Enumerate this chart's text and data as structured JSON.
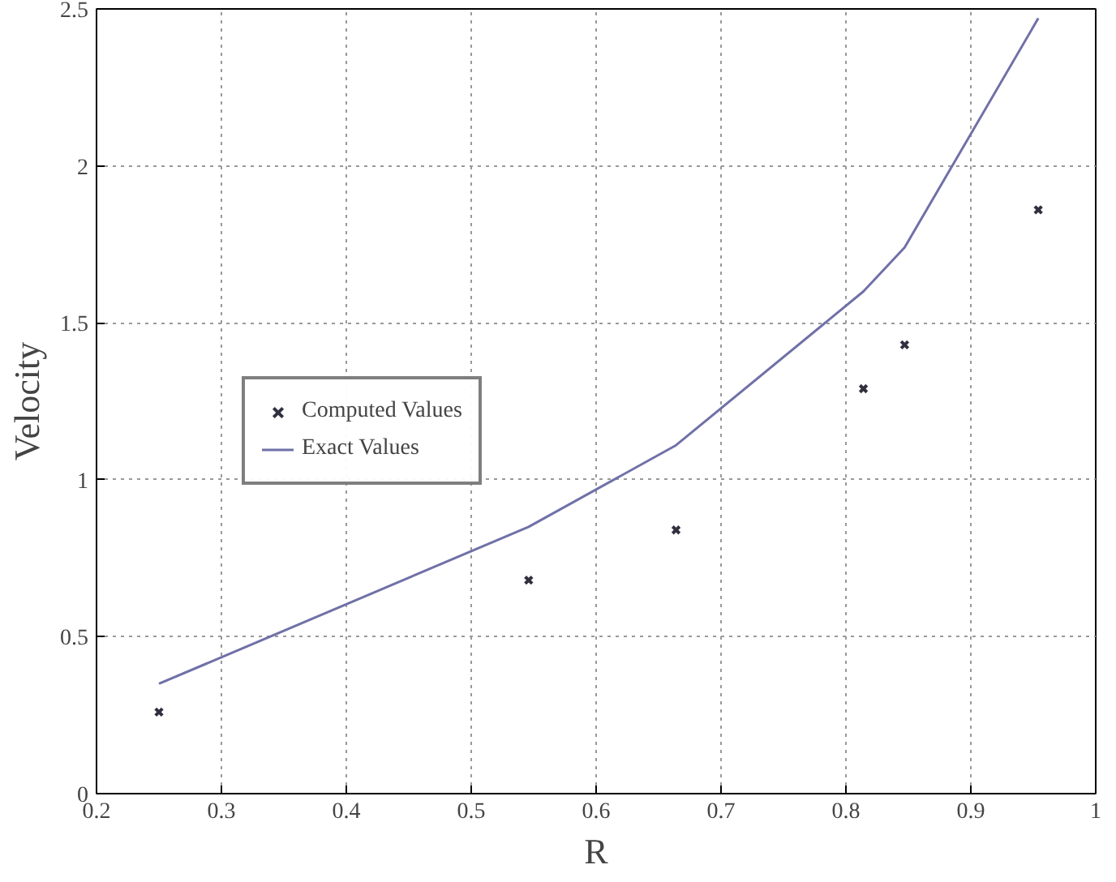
{
  "chart_data": {
    "type": "scatter",
    "xlabel": "R",
    "ylabel": "Velocity",
    "xlim": [
      0.2,
      1
    ],
    "ylim": [
      0,
      2.5
    ],
    "xticks": [
      0.2,
      0.3,
      0.4,
      0.5,
      0.6,
      0.7,
      0.8,
      0.9,
      1
    ],
    "yticks": [
      0,
      0.5,
      1,
      1.5,
      2,
      2.5
    ],
    "grid": true,
    "legend": "left",
    "series": [
      {
        "name": "Computed Values",
        "marker": "cross",
        "color": "#303040",
        "x": [
          0.25,
          0.546,
          0.664,
          0.814,
          0.847,
          0.954
        ],
        "values": [
          0.26,
          0.68,
          0.84,
          1.29,
          1.43,
          1.86
        ]
      },
      {
        "name": "Exact Values",
        "type": "line",
        "color": "#7070a8",
        "x": [
          0.25,
          0.546,
          0.664,
          0.814,
          0.847,
          0.954
        ],
        "values": [
          0.35,
          0.85,
          1.11,
          1.6,
          1.74,
          2.47
        ]
      }
    ]
  }
}
